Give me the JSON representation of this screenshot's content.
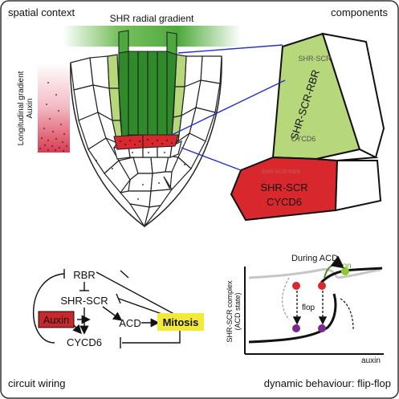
{
  "panels": {
    "spatial_context": "spatial context",
    "components": "components",
    "circuit_wiring": "circuit wiring",
    "dynamic_behaviour": "dynamic behaviour: flip-flop"
  },
  "root": {
    "shr_gradient_label": "SHR radial gradient",
    "auxin_label": "Auxin",
    "longitudinal_label": "Longitudinal gradient"
  },
  "components": {
    "upper_small": "SHR-SCR",
    "upper_main": "SHR-SCR-RBR",
    "upper_bottom": "CYCD6",
    "lower_small": "SHR-SCR-RBR",
    "lower_main_1": "SHR-SCR",
    "lower_main_2": "CYCD6"
  },
  "circuit": {
    "rbr": "RBR",
    "shr_scr": "SHR-SCR",
    "auxin": "Auxin",
    "acd": "ACD",
    "mitosis": "Mitosis",
    "cycd6": "CYCD6"
  },
  "dynamics": {
    "during_acd": "During ACD",
    "on": "on",
    "flop": "flop",
    "y_axis_1": "SHR-SCR complex",
    "y_axis_2": "(ACD state)",
    "x_axis": "auxin"
  },
  "colors": {
    "dark_green": "#2f8a2a",
    "light_green": "#b6d77a",
    "red": "#d8282e",
    "auxin_box": "#c8282c",
    "mitosis_box": "#f1ea3a",
    "purple": "#7a2a8a",
    "on_green": "#8ccc2a",
    "link_blue": "#2230c8"
  }
}
